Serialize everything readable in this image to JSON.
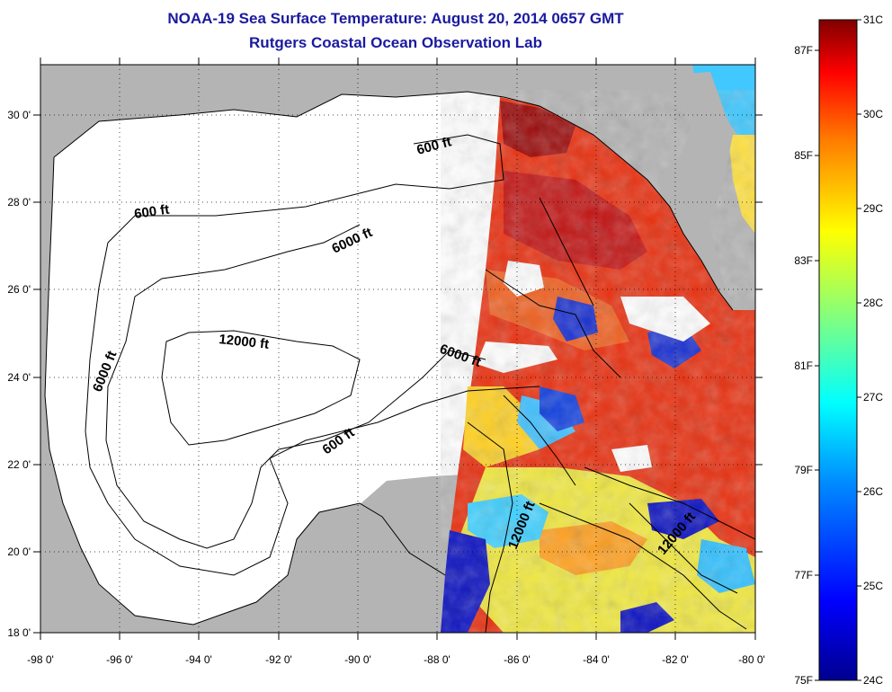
{
  "header": {
    "title": "NOAA-19 Sea Surface Temperature:  August 20, 2014 0657 GMT",
    "subtitle": "Rutgers Coastal Ocean Observation Lab"
  },
  "map": {
    "lon_range": [
      -98,
      -80
    ],
    "lat_range": [
      18,
      31
    ],
    "lon_ticks": [
      "-98 0'",
      "-96 0'",
      "-94 0'",
      "-92 0'",
      "-90 0'",
      "-88 0'",
      "-86 0'",
      "-84 0'",
      "-82 0'",
      "-80 0'"
    ],
    "lat_ticks": [
      "30 0'",
      "28 0'",
      "26 0'",
      "24 0'",
      "22 0'",
      "20 0'",
      "18 0'"
    ],
    "contour_labels": [
      "600 ft",
      "600 ft",
      "6000 ft",
      "12000 ft",
      "6000 ft",
      "6000 ft",
      "600 ft",
      "12000 ft",
      "12000 ft"
    ],
    "colors": {
      "land": "#b4b4b4",
      "nodata": "#ffffff"
    }
  },
  "colorbar": {
    "celsius_labels": [
      "31C",
      "30C",
      "29C",
      "28C",
      "27C",
      "26C",
      "25C",
      "24C"
    ],
    "fahrenheit_labels": [
      "87F",
      "85F",
      "83F",
      "81F",
      "79F",
      "77F",
      "75F"
    ],
    "range_c": [
      24,
      31
    ]
  }
}
